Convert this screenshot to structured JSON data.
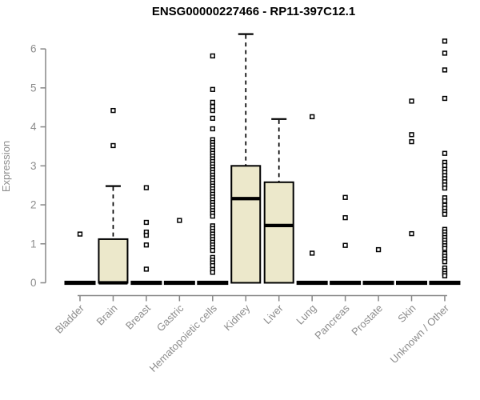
{
  "chart_data": {
    "type": "boxplot",
    "title": "ENSG00000227466 - RP11-397C12.1",
    "ylabel": "Expression",
    "xlabel": "",
    "ylim": [
      0,
      6
    ],
    "yticks": [
      0,
      1,
      2,
      3,
      4,
      5,
      6
    ],
    "grid": false,
    "legend": "none",
    "box_fill": "#ece8cb",
    "box_stroke": "#000000",
    "axis_color": "#878787",
    "label_color": "#8c8c8c",
    "categories": [
      "Bladder",
      "Brain",
      "Breast",
      "Gastric",
      "Hematopoietic cells",
      "Kidney",
      "Liver",
      "Lung",
      "Pancreas",
      "Prostate",
      "Skin",
      "Unknown / Other"
    ],
    "series": [
      {
        "name": "Bladder",
        "q1": 0,
        "median": 0,
        "q3": 0,
        "whisker_low": 0,
        "whisker_high": 0,
        "outliers": [
          1.25
        ]
      },
      {
        "name": "Brain",
        "q1": 0,
        "median": 0,
        "q3": 1.12,
        "whisker_low": 0,
        "whisker_high": 2.48,
        "outliers": [
          3.52,
          4.42
        ]
      },
      {
        "name": "Breast",
        "q1": 0,
        "median": 0,
        "q3": 0,
        "whisker_low": 0,
        "whisker_high": 0,
        "outliers": [
          2.44,
          1.55,
          1.3,
          1.22,
          0.97,
          0.35
        ]
      },
      {
        "name": "Gastric",
        "q1": 0,
        "median": 0,
        "q3": 0,
        "whisker_low": 0,
        "whisker_high": 0,
        "outliers": [
          1.6
        ]
      },
      {
        "name": "Hematopoietic cells",
        "q1": 0,
        "median": 0,
        "q3": 0,
        "whisker_low": 0,
        "whisker_high": 0,
        "outliers": [
          5.82,
          4.96,
          4.63,
          4.52,
          4.42,
          4.22,
          3.95,
          3.67,
          3.6,
          3.53,
          3.46,
          3.39,
          3.32,
          3.25,
          3.18,
          3.11,
          3.04,
          2.97,
          2.9,
          2.83,
          2.76,
          2.69,
          2.62,
          2.55,
          2.48,
          2.41,
          2.34,
          2.27,
          2.2,
          2.13,
          2.06,
          1.99,
          1.92,
          1.85,
          1.78,
          1.71,
          1.46,
          1.39,
          1.32,
          1.25,
          1.18,
          1.11,
          1.04,
          0.97,
          0.9,
          0.83,
          0.65,
          0.58,
          0.51,
          0.44,
          0.34,
          0.27
        ]
      },
      {
        "name": "Kidney",
        "q1": 0,
        "median": 2.16,
        "q3": 3.0,
        "whisker_low": 0,
        "whisker_high": 6.38,
        "outliers": []
      },
      {
        "name": "Liver",
        "q1": 0,
        "median": 1.47,
        "q3": 2.58,
        "whisker_low": 0,
        "whisker_high": 4.2,
        "outliers": []
      },
      {
        "name": "Lung",
        "q1": 0,
        "median": 0,
        "q3": 0,
        "whisker_low": 0,
        "whisker_high": 0,
        "outliers": [
          4.26,
          0.76
        ]
      },
      {
        "name": "Pancreas",
        "q1": 0,
        "median": 0,
        "q3": 0,
        "whisker_low": 0,
        "whisker_high": 0,
        "outliers": [
          2.19,
          1.67,
          0.96
        ]
      },
      {
        "name": "Prostate",
        "q1": 0,
        "median": 0,
        "q3": 0,
        "whisker_low": 0,
        "whisker_high": 0,
        "outliers": [
          0.85
        ]
      },
      {
        "name": "Skin",
        "q1": 0,
        "median": 0,
        "q3": 0,
        "whisker_low": 0,
        "whisker_high": 0,
        "outliers": [
          4.66,
          3.8,
          3.62,
          1.26
        ]
      },
      {
        "name": "Unknown / Other",
        "q1": 0,
        "median": 0,
        "q3": 0,
        "whisker_low": 0,
        "whisker_high": 0,
        "outliers": [
          6.2,
          5.89,
          5.46,
          4.73,
          3.32,
          3.09,
          3.01,
          2.91,
          2.83,
          2.75,
          2.67,
          2.59,
          2.51,
          2.43,
          2.18,
          2.1,
          1.99,
          1.91,
          1.83,
          1.76,
          1.37,
          1.3,
          1.23,
          1.16,
          1.09,
          1.02,
          0.95,
          0.88,
          0.75,
          0.68,
          0.61,
          0.54,
          0.38,
          0.31,
          0.24,
          0.18
        ]
      }
    ]
  }
}
